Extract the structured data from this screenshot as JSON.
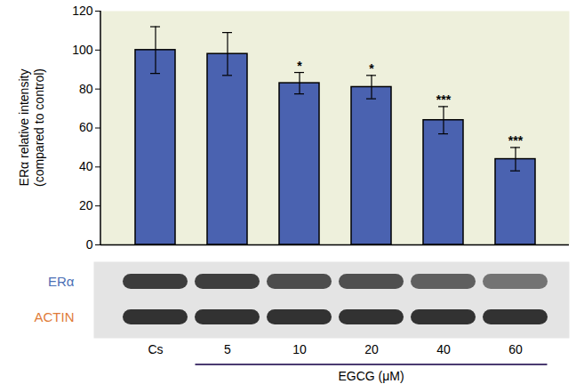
{
  "chart_data": {
    "type": "bar",
    "categories": [
      "Cs",
      "5",
      "10",
      "20",
      "40",
      "60"
    ],
    "values": [
      100,
      98,
      83,
      81,
      64,
      44
    ],
    "errors": [
      12,
      11,
      5.5,
      6,
      7,
      6
    ],
    "significance": [
      null,
      null,
      "*",
      "*",
      "***",
      "***"
    ],
    "color": "#4a62b0",
    "ylim": [
      0,
      120
    ],
    "yticks": [
      0,
      20,
      40,
      60,
      80,
      100,
      120
    ],
    "ylabel": "ERα relative intensity\n(compared to control)",
    "xlabel": "EGCG (μM)",
    "blot_labels": [
      "ERα",
      "ACTIN"
    ]
  }
}
